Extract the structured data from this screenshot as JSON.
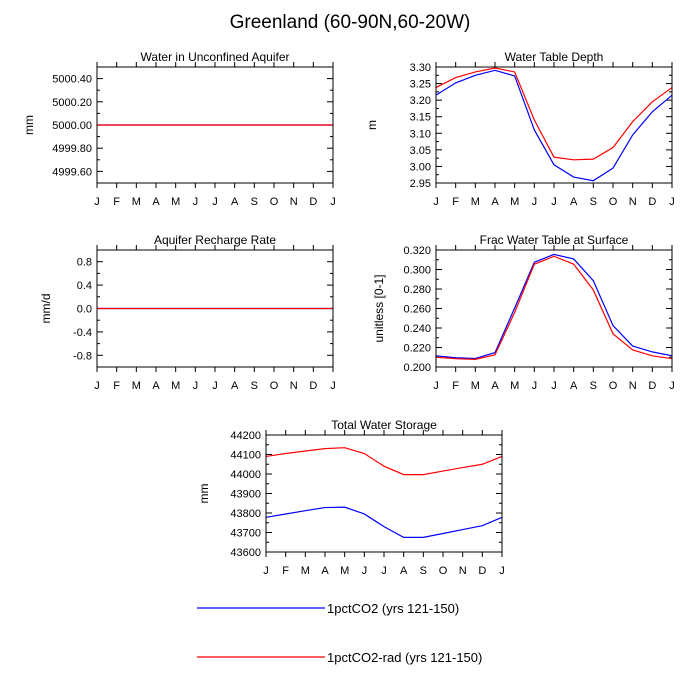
{
  "figure": {
    "title": "Greenland (60-90N,60-20W)",
    "months": [
      "J",
      "F",
      "M",
      "A",
      "M",
      "J",
      "J",
      "A",
      "S",
      "O",
      "N",
      "D",
      "J"
    ]
  },
  "legend": {
    "entries": [
      {
        "label": "1pctCO2 (yrs 121-150)",
        "color": "#0000ff"
      },
      {
        "label": "1pctCO2-rad (yrs 121-150)",
        "color": "#ff0000"
      }
    ]
  },
  "chart_data": [
    {
      "type": "line",
      "title": "Water in Unconfined Aquifer",
      "ylabel": "mm",
      "ylim": [
        4999.5,
        5000.5
      ],
      "yticks": [
        4999.6,
        4999.8,
        5000.0,
        5000.2,
        5000.4
      ],
      "ytick_labels": [
        "4999.60",
        "4999.80",
        "5000.00",
        "5000.20",
        "5000.40"
      ],
      "x": [
        "J",
        "F",
        "M",
        "A",
        "M",
        "J",
        "J",
        "A",
        "S",
        "O",
        "N",
        "D",
        "J"
      ],
      "series": [
        {
          "name": "1pctCO2 (yrs 121-150)",
          "color": "#0000ff",
          "values": [
            5000.0,
            5000.0,
            5000.0,
            5000.0,
            5000.0,
            5000.0,
            5000.0,
            5000.0,
            5000.0,
            5000.0,
            5000.0,
            5000.0,
            5000.0
          ]
        },
        {
          "name": "1pctCO2-rad (yrs 121-150)",
          "color": "#ff0000",
          "values": [
            5000.0,
            5000.0,
            5000.0,
            5000.0,
            5000.0,
            5000.0,
            5000.0,
            5000.0,
            5000.0,
            5000.0,
            5000.0,
            5000.0,
            5000.0
          ]
        }
      ]
    },
    {
      "type": "line",
      "title": "Water Table Depth",
      "ylabel": "m",
      "ylim": [
        2.95,
        3.3
      ],
      "yticks": [
        2.95,
        3.0,
        3.05,
        3.1,
        3.15,
        3.2,
        3.25,
        3.3
      ],
      "ytick_labels": [
        "2.95",
        "3.00",
        "3.05",
        "3.10",
        "3.15",
        "3.20",
        "3.25",
        "3.30"
      ],
      "x": [
        "J",
        "F",
        "M",
        "A",
        "M",
        "J",
        "J",
        "A",
        "S",
        "O",
        "N",
        "D",
        "J"
      ],
      "series": [
        {
          "name": "1pctCO2 (yrs 121-150)",
          "color": "#0000ff",
          "values": [
            3.215,
            3.252,
            3.275,
            3.29,
            3.273,
            3.11,
            3.005,
            2.968,
            2.957,
            2.995,
            3.095,
            3.165,
            3.215
          ]
        },
        {
          "name": "1pctCO2-rad (yrs 121-150)",
          "color": "#ff0000",
          "values": [
            3.238,
            3.268,
            3.285,
            3.297,
            3.285,
            3.14,
            3.028,
            3.02,
            3.022,
            3.057,
            3.135,
            3.195,
            3.238
          ]
        }
      ]
    },
    {
      "type": "line",
      "title": "Aquifer Recharge Rate",
      "ylabel": "mm/d",
      "ylim": [
        -1.0,
        1.0
      ],
      "yticks": [
        -0.8,
        -0.4,
        0.0,
        0.4,
        0.8
      ],
      "ytick_labels": [
        "-0.8",
        "-0.4",
        "0.0",
        "0.4",
        "0.8"
      ],
      "x": [
        "J",
        "F",
        "M",
        "A",
        "M",
        "J",
        "J",
        "A",
        "S",
        "O",
        "N",
        "D",
        "J"
      ],
      "series": [
        {
          "name": "1pctCO2 (yrs 121-150)",
          "color": "#0000ff",
          "values": [
            0,
            0,
            0,
            0,
            0,
            0,
            0,
            0,
            0,
            0,
            0,
            0,
            0
          ]
        },
        {
          "name": "1pctCO2-rad (yrs 121-150)",
          "color": "#ff0000",
          "values": [
            0,
            0,
            0,
            0,
            0,
            0,
            0,
            0,
            0,
            0,
            0,
            0,
            0
          ]
        }
      ]
    },
    {
      "type": "line",
      "title": "Frac Water Table at Surface",
      "ylabel": "unitless [0-1]",
      "ylim": [
        0.2,
        0.32
      ],
      "yticks": [
        0.2,
        0.22,
        0.24,
        0.26,
        0.28,
        0.3,
        0.32
      ],
      "ytick_labels": [
        "0.200",
        "0.220",
        "0.240",
        "0.260",
        "0.280",
        "0.300",
        "0.320"
      ],
      "x": [
        "J",
        "F",
        "M",
        "A",
        "M",
        "J",
        "J",
        "A",
        "S",
        "O",
        "N",
        "D",
        "J"
      ],
      "series": [
        {
          "name": "1pctCO2 (yrs 121-150)",
          "color": "#0000ff",
          "values": [
            0.2115,
            0.2095,
            0.2088,
            0.2148,
            0.2605,
            0.3075,
            0.3155,
            0.3108,
            0.2885,
            0.2425,
            0.2215,
            0.2155,
            0.2115
          ]
        },
        {
          "name": "1pctCO2-rad (yrs 121-150)",
          "color": "#ff0000",
          "values": [
            0.21,
            0.2085,
            0.2078,
            0.2125,
            0.256,
            0.3055,
            0.3135,
            0.3055,
            0.279,
            0.234,
            0.2175,
            0.2115,
            0.2085
          ]
        }
      ]
    },
    {
      "type": "line",
      "title": "Total Water Storage",
      "ylabel": "mm",
      "ylim": [
        43600,
        44200
      ],
      "yticks": [
        43600,
        43700,
        43800,
        43900,
        44000,
        44100,
        44200
      ],
      "ytick_labels": [
        "43600",
        "43700",
        "43800",
        "43900",
        "44000",
        "44100",
        "44200"
      ],
      "x": [
        "J",
        "F",
        "M",
        "A",
        "M",
        "J",
        "J",
        "A",
        "S",
        "O",
        "N",
        "D",
        "J"
      ],
      "series": [
        {
          "name": "1pctCO2 (yrs 121-150)",
          "color": "#0000ff",
          "values": [
            43778,
            43795,
            43812,
            43828,
            43830,
            43795,
            43730,
            43675,
            43675,
            43695,
            43715,
            43735,
            43778
          ]
        },
        {
          "name": "1pctCO2-rad (yrs 121-150)",
          "color": "#ff0000",
          "values": [
            44090,
            44105,
            44118,
            44130,
            44135,
            44105,
            44040,
            43997,
            43997,
            44015,
            44033,
            44050,
            44090
          ]
        }
      ]
    }
  ]
}
